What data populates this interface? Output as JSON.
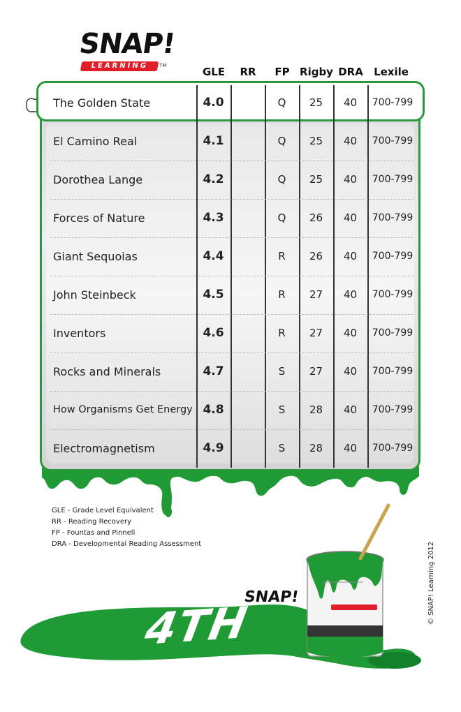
{
  "brand": {
    "name": "SNAP!",
    "sub": "LEARNING",
    "tm": "TM"
  },
  "headers": {
    "title": "",
    "gle": "GLE",
    "rr": "RR",
    "fp": "FP",
    "rigby": "Rigby",
    "dra": "DRA",
    "lexile": "Lexile"
  },
  "rows": [
    {
      "title": "The Golden State",
      "gle": "4.0",
      "rr": "",
      "fp": "Q",
      "rigby": "25",
      "dra": "40",
      "lexile": "700-799"
    },
    {
      "title": "El Camino Real",
      "gle": "4.1",
      "rr": "",
      "fp": "Q",
      "rigby": "25",
      "dra": "40",
      "lexile": "700-799"
    },
    {
      "title": "Dorothea Lange",
      "gle": "4.2",
      "rr": "",
      "fp": "Q",
      "rigby": "25",
      "dra": "40",
      "lexile": "700-799"
    },
    {
      "title": "Forces of Nature",
      "gle": "4.3",
      "rr": "",
      "fp": "Q",
      "rigby": "26",
      "dra": "40",
      "lexile": "700-799"
    },
    {
      "title": "Giant Sequoias",
      "gle": "4.4",
      "rr": "",
      "fp": "R",
      "rigby": "26",
      "dra": "40",
      "lexile": "700-799"
    },
    {
      "title": "John Steinbeck",
      "gle": "4.5",
      "rr": "",
      "fp": "R",
      "rigby": "27",
      "dra": "40",
      "lexile": "700-799"
    },
    {
      "title": "Inventors",
      "gle": "4.6",
      "rr": "",
      "fp": "R",
      "rigby": "27",
      "dra": "40",
      "lexile": "700-799"
    },
    {
      "title": "Rocks and Minerals",
      "gle": "4.7",
      "rr": "",
      "fp": "S",
      "rigby": "27",
      "dra": "40",
      "lexile": "700-799"
    },
    {
      "title": "How Organisms Get Energy",
      "gle": "4.8",
      "rr": "",
      "fp": "S",
      "rigby": "28",
      "dra": "40",
      "lexile": "700-799"
    },
    {
      "title": "Electromagnetism",
      "gle": "4.9",
      "rr": "",
      "fp": "S",
      "rigby": "28",
      "dra": "40",
      "lexile": "700-799"
    }
  ],
  "legend": [
    "GLE - Grade Level Equivalent",
    "RR - Reading Recovery",
    "FP - Fountas and Pinnell",
    "DRA - Developmental Reading Assessment"
  ],
  "grade": "4TH",
  "copyright": "© SNAP! Learning 2012",
  "colors": {
    "accent": "#2a9a3c",
    "paint": "#1f9a35",
    "logo_red": "#e01f2a"
  },
  "icons": {
    "pointer": "pointing-hand-icon",
    "paint_can": "paint-can-icon"
  }
}
